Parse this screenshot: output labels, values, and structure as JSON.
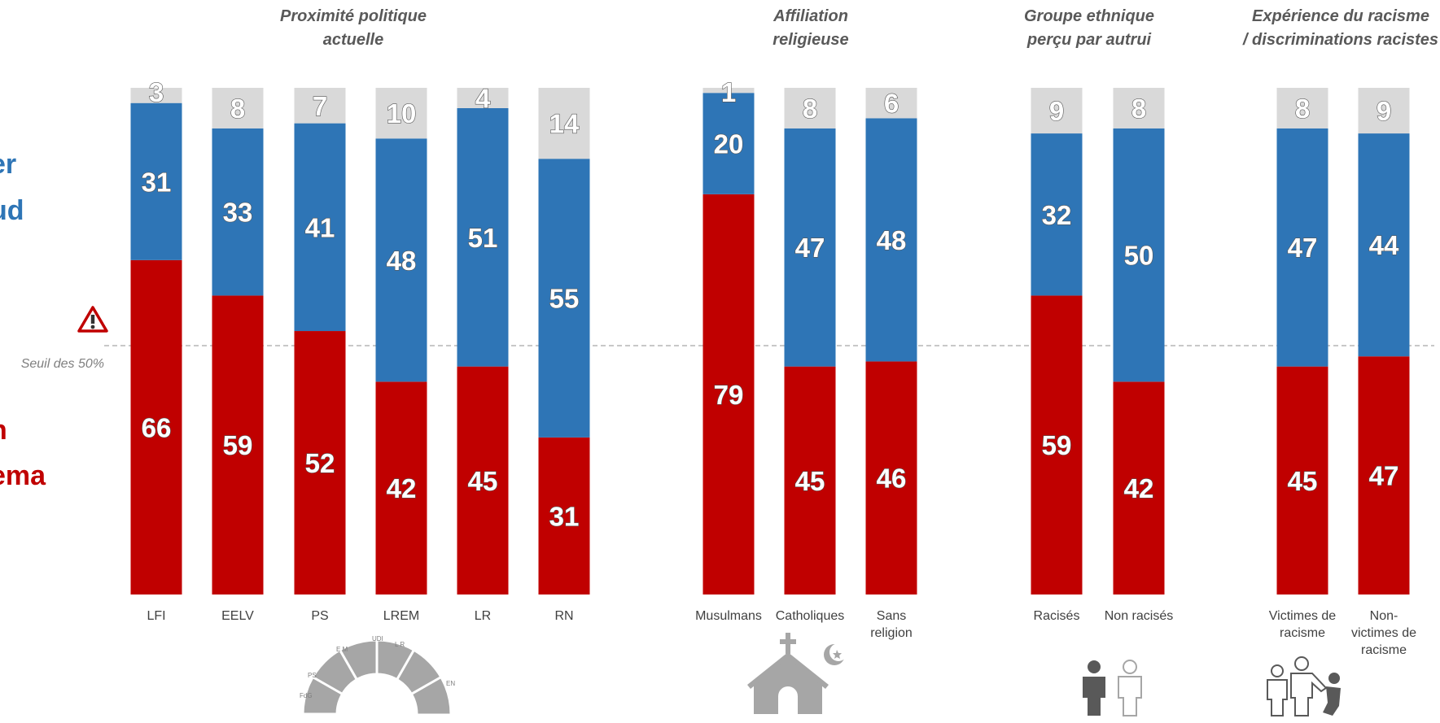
{
  "colors": {
    "red": "#c00000",
    "blue": "#2e75b6",
    "grey": "#d9d9d9",
    "icon": "#a6a6a6"
  },
  "left_text": {
    "blue_lines": [
      "er",
      "ud"
    ],
    "red_lines": [
      "n",
      "ema"
    ]
  },
  "threshold": {
    "label": "Seuil des 50%",
    "value": 50,
    "icon": "warning-triangle-icon"
  },
  "chart_data": {
    "type": "bar",
    "stacked": true,
    "ylim": [
      0,
      100
    ],
    "series_colors": [
      "#c00000",
      "#2e75b6",
      "#d9d9d9"
    ],
    "groups": [
      {
        "title_lines": [
          "Proximité politique",
          "actuelle"
        ],
        "icon": "hemicycle-icon",
        "categories": [
          {
            "label_lines": [
              "LFI"
            ],
            "values": [
              66,
              31,
              3
            ]
          },
          {
            "label_lines": [
              "EELV"
            ],
            "values": [
              59,
              33,
              8
            ]
          },
          {
            "label_lines": [
              "PS"
            ],
            "values": [
              52,
              41,
              7
            ]
          },
          {
            "label_lines": [
              "LREM"
            ],
            "values": [
              42,
              48,
              10
            ]
          },
          {
            "label_lines": [
              "LR"
            ],
            "values": [
              45,
              51,
              4
            ]
          },
          {
            "label_lines": [
              "RN"
            ],
            "values": [
              31,
              55,
              14
            ]
          }
        ]
      },
      {
        "title_lines": [
          "Affiliation",
          "religieuse"
        ],
        "icon": "church-crescent-icon",
        "categories": [
          {
            "label_lines": [
              "Musulmans"
            ],
            "values": [
              79,
              20,
              1
            ]
          },
          {
            "label_lines": [
              "Catholiques"
            ],
            "values": [
              45,
              47,
              8
            ]
          },
          {
            "label_lines": [
              "Sans",
              "religion"
            ],
            "values": [
              46,
              48,
              6
            ]
          }
        ]
      },
      {
        "title_lines": [
          "Groupe ethnique",
          "perçu par autrui"
        ],
        "icon": "people-icon",
        "categories": [
          {
            "label_lines": [
              "Racisés"
            ],
            "values": [
              59,
              32,
              9
            ]
          },
          {
            "label_lines": [
              "Non racisés"
            ],
            "values": [
              42,
              50,
              8
            ]
          }
        ]
      },
      {
        "title_lines": [
          "Expérience du racisme",
          "/ discriminations racistes"
        ],
        "icon": "discrimination-icon",
        "categories": [
          {
            "label_lines": [
              "Victimes de",
              "racisme"
            ],
            "values": [
              45,
              47,
              8
            ]
          },
          {
            "label_lines": [
              "Non-",
              "victimes de",
              "racisme"
            ],
            "values": [
              47,
              44,
              9
            ]
          }
        ]
      }
    ]
  }
}
